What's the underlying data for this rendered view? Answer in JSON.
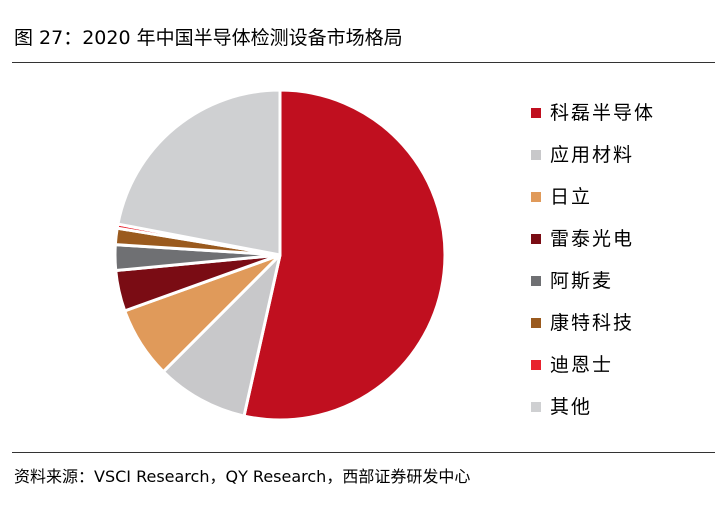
{
  "figure": {
    "title": "图 27：2020 年中国半导体检测设备市场格局",
    "source": "资料来源：VSCI Research，QY Research，西部证券研发中心"
  },
  "chart_data": {
    "type": "pie",
    "title": "2020 年中国半导体检测设备市场格局",
    "unit": "%",
    "start_angle": "12 o'clock",
    "direction": "clockwise",
    "legend_position": "right",
    "slices": [
      {
        "label": "科磊半导体",
        "value": 53.5,
        "color": "#c00f1f"
      },
      {
        "label": "应用材料",
        "value": 9.0,
        "color": "#c8c8ca"
      },
      {
        "label": "日立",
        "value": 7.0,
        "color": "#e09a5a"
      },
      {
        "label": "雷泰光电",
        "value": 4.0,
        "color": "#7a0c14"
      },
      {
        "label": "阿斯麦",
        "value": 2.5,
        "color": "#6f7073"
      },
      {
        "label": "康特科技",
        "value": 1.6,
        "color": "#9a5a1e"
      },
      {
        "label": "迪恩士",
        "value": 0.4,
        "color": "#e8222e"
      },
      {
        "label": "其他",
        "value": 22.0,
        "color": "#cfd0d2"
      }
    ]
  }
}
